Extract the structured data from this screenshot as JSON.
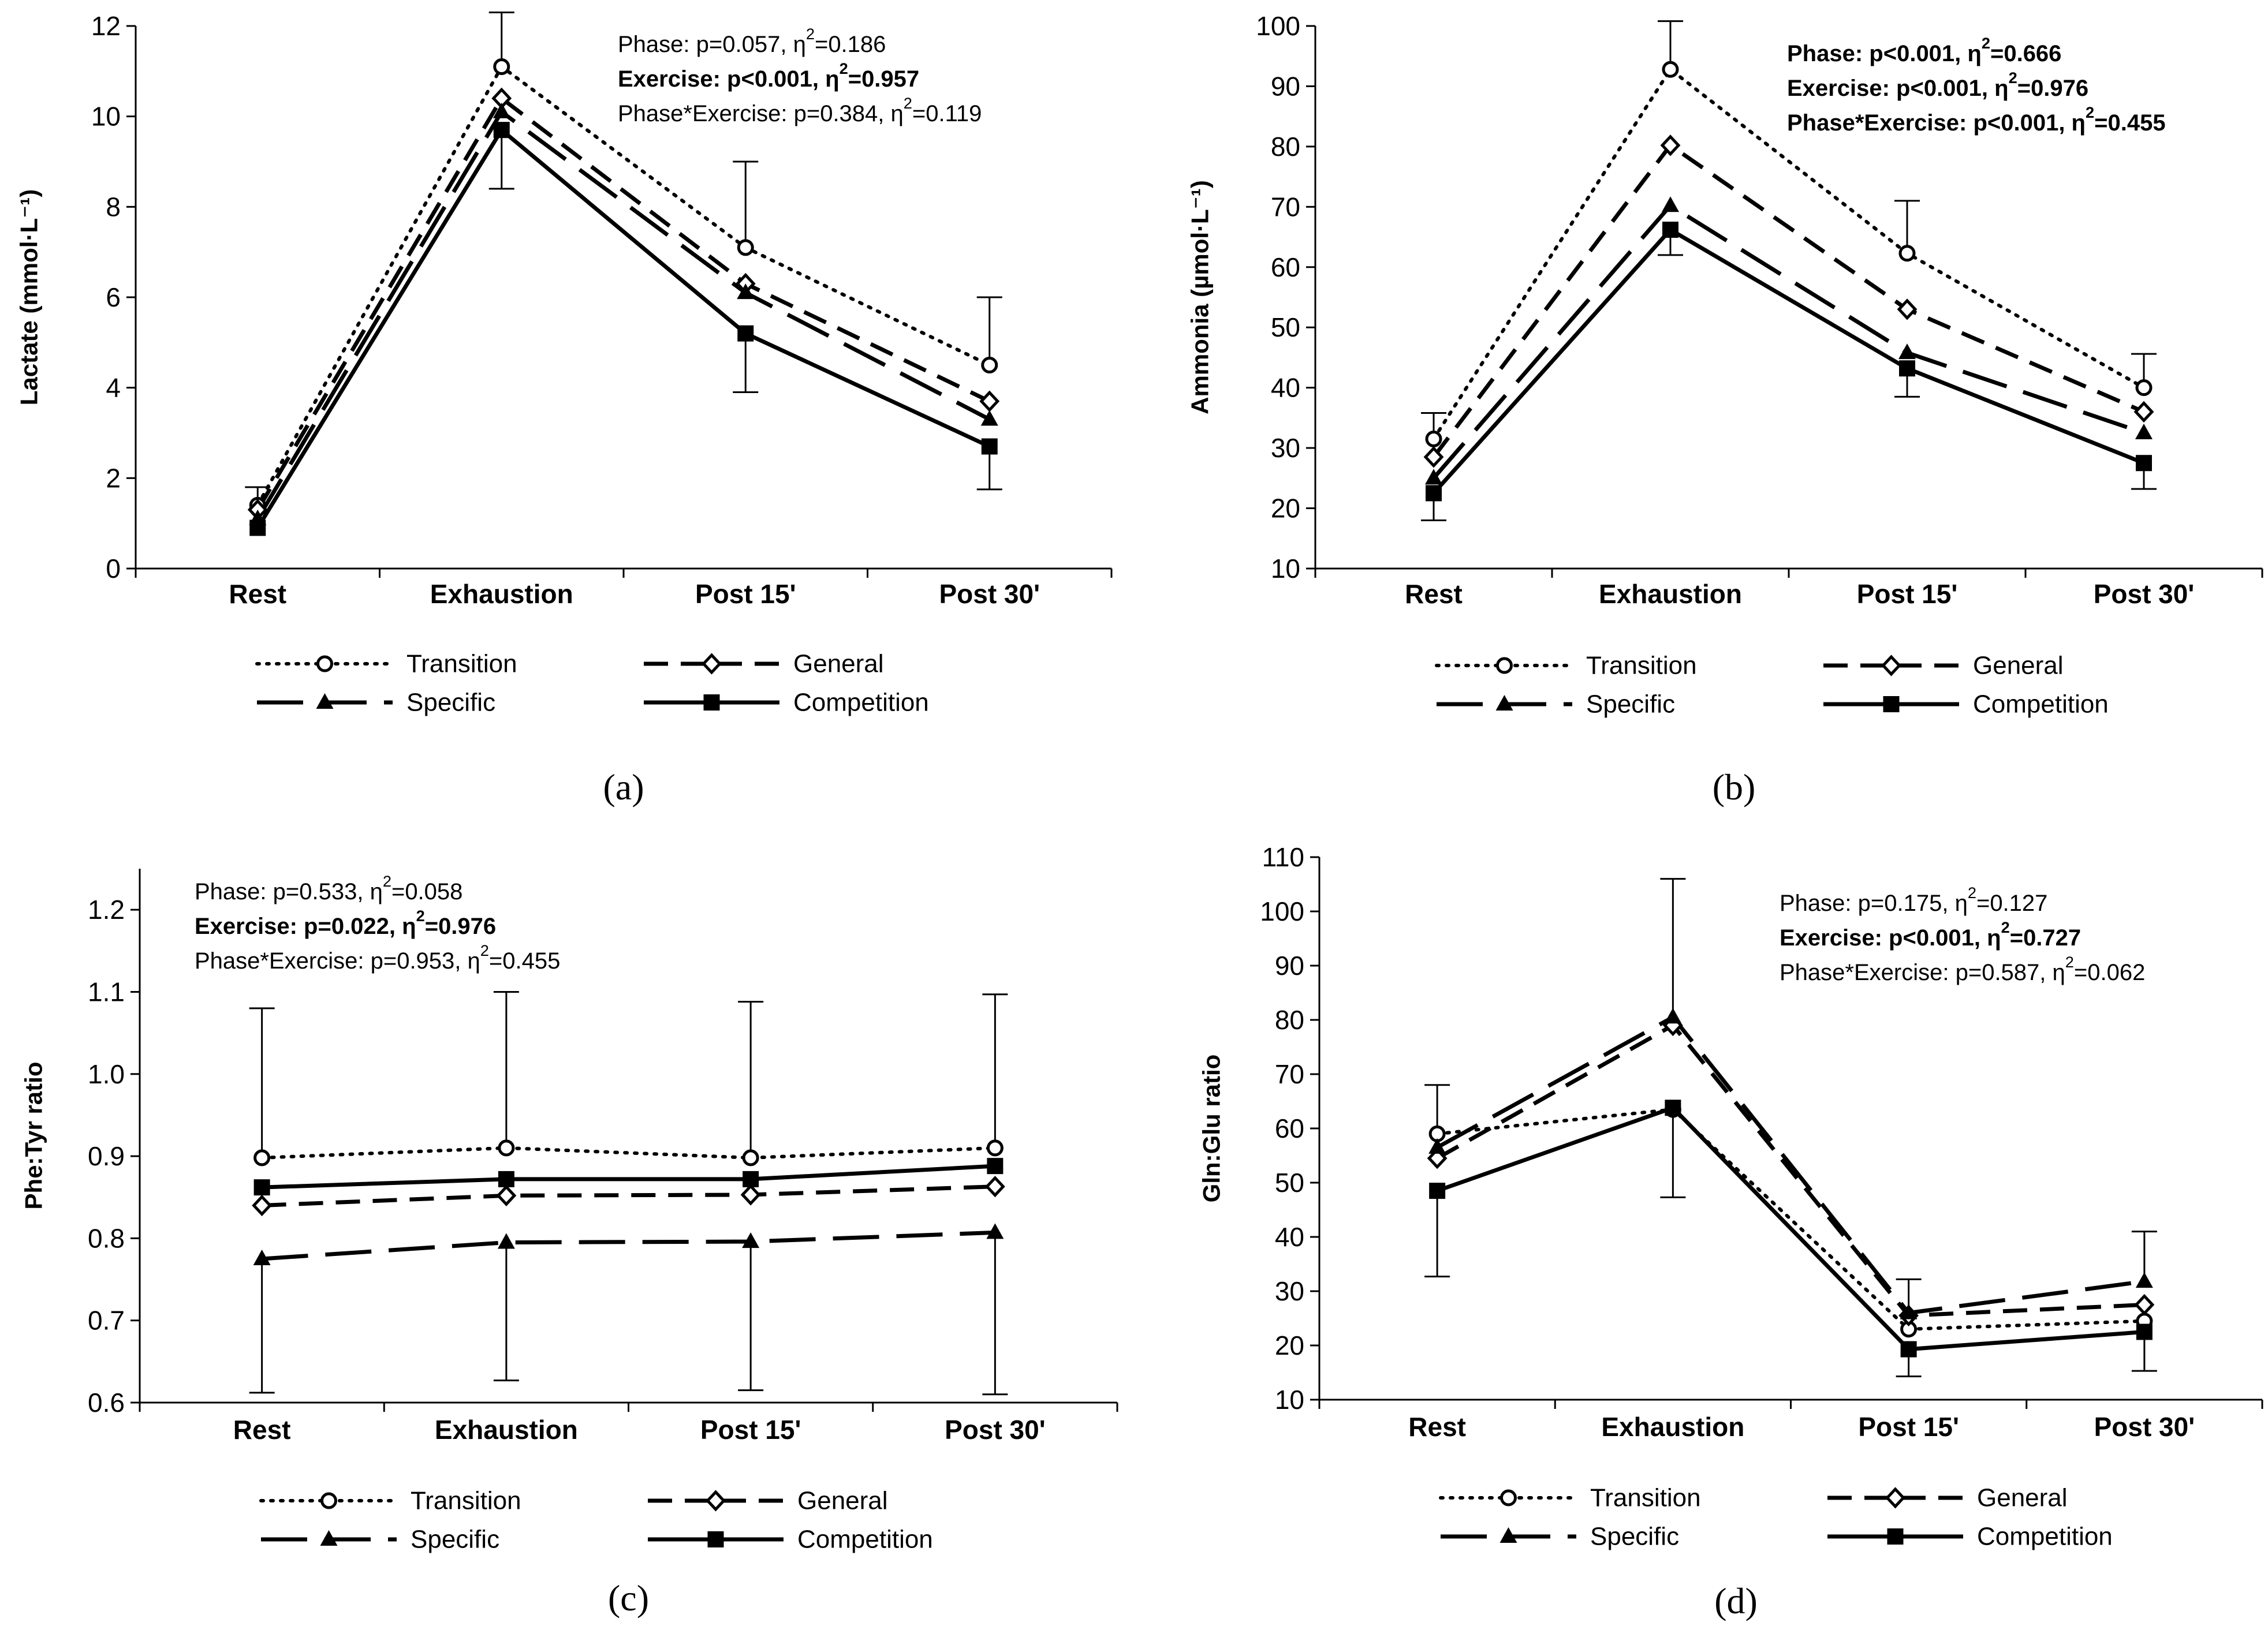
{
  "figure": {
    "series_styles": {
      "Transition": {
        "dash": "dotted",
        "marker": "open-circle"
      },
      "General": {
        "dash": "short-dash",
        "marker": "open-diamond"
      },
      "Specific": {
        "dash": "long-dash",
        "marker": "filled-triangle"
      },
      "Competition": {
        "dash": "solid",
        "marker": "filled-square"
      }
    },
    "line_color": "#000000",
    "background": "#ffffff"
  },
  "chart_data": [
    {
      "type": "line",
      "panel_label": "(a)",
      "ylabel": "Lactate (mmol·L⁻¹)",
      "xlabel": "",
      "categories": [
        "Rest",
        "Exhaustion",
        "Post 15'",
        "Post 30'"
      ],
      "ylim": [
        0,
        12
      ],
      "yticks": [
        0,
        2,
        4,
        6,
        8,
        10,
        12
      ],
      "ytick_labels": [
        "0",
        "2",
        "4",
        "6",
        "8",
        "10",
        "12"
      ],
      "series": [
        {
          "name": "Transition",
          "values": [
            1.4,
            11.1,
            7.1,
            4.5
          ],
          "err_up": [
            0.4,
            1.2,
            1.9,
            1.5
          ],
          "err_down": [
            0,
            0,
            0,
            0
          ]
        },
        {
          "name": "General",
          "values": [
            1.3,
            10.4,
            6.3,
            3.7
          ],
          "err_up": [
            0,
            0,
            0,
            0
          ],
          "err_down": [
            0,
            0,
            0,
            0
          ]
        },
        {
          "name": "Specific",
          "values": [
            1.1,
            10.1,
            6.1,
            3.3
          ],
          "err_up": [
            0,
            0,
            0,
            0
          ],
          "err_down": [
            0,
            0,
            0,
            0
          ]
        },
        {
          "name": "Competition",
          "values": [
            0.9,
            9.7,
            5.2,
            2.7
          ],
          "err_up": [
            0,
            0,
            0,
            0
          ],
          "err_down": [
            0,
            1.3,
            1.3,
            0.95
          ]
        }
      ],
      "stats": [
        {
          "text": "Phase: p=0.057, η",
          "sup": "2",
          "tail": "=0.186",
          "bold": false
        },
        {
          "text": "Exercise: p<0.001, η",
          "sup": "2",
          "tail": "=0.957",
          "bold": true
        },
        {
          "text": "Phase*Exercise: p=0.384, η",
          "sup": "2",
          "tail": "=0.119",
          "bold": false
        }
      ],
      "legend": [
        "Transition",
        "General",
        "Specific",
        "Competition"
      ]
    },
    {
      "type": "line",
      "panel_label": "(b)",
      "ylabel": "Ammonia (µmol·L⁻¹)",
      "xlabel": "",
      "categories": [
        "Rest",
        "Exhaustion",
        "Post 15'",
        "Post 30'"
      ],
      "ylim": [
        10,
        100
      ],
      "yticks": [
        10,
        20,
        30,
        40,
        50,
        60,
        70,
        80,
        90,
        100
      ],
      "ytick_labels": [
        "10",
        "20",
        "30",
        "40",
        "50",
        "60",
        "70",
        "80",
        "90",
        "100"
      ],
      "series": [
        {
          "name": "Transition",
          "values": [
            31.5,
            92.8,
            62.3,
            40.0
          ],
          "err_up": [
            4.3,
            8.0,
            8.7,
            5.6
          ],
          "err_down": [
            0,
            0,
            0,
            0
          ]
        },
        {
          "name": "General",
          "values": [
            28.5,
            80.2,
            53.0,
            36.0
          ],
          "err_up": [
            0,
            0,
            0,
            0
          ],
          "err_down": [
            0,
            0,
            0,
            0
          ]
        },
        {
          "name": "Specific",
          "values": [
            25.0,
            70.2,
            45.8,
            32.5
          ],
          "err_up": [
            0,
            0,
            0,
            0
          ],
          "err_down": [
            0,
            0,
            0,
            0
          ]
        },
        {
          "name": "Competition",
          "values": [
            22.5,
            66.2,
            43.2,
            27.5
          ],
          "err_up": [
            0,
            0,
            0,
            0
          ],
          "err_down": [
            4.5,
            4.2,
            4.7,
            4.3
          ]
        }
      ],
      "stats": [
        {
          "text": "Phase: p<0.001, η",
          "sup": "2",
          "tail": "=0.666",
          "bold": true
        },
        {
          "text": "Exercise: p<0.001, η",
          "sup": "2",
          "tail": "=0.976",
          "bold": true
        },
        {
          "text": "Phase*Exercise: p<0.001, η",
          "sup": "2",
          "tail": "=0.455",
          "bold": true
        }
      ],
      "legend": [
        "Transition",
        "General",
        "Specific",
        "Competition"
      ]
    },
    {
      "type": "line",
      "panel_label": "(c)",
      "ylabel": "Phe:Tyr ratio",
      "xlabel": "",
      "categories": [
        "Rest",
        "Exhaustion",
        "Post 15'",
        "Post 30'"
      ],
      "ylim": [
        0.6,
        1.25
      ],
      "yticks": [
        0.6,
        0.7,
        0.8,
        0.9,
        1.0,
        1.1,
        1.2
      ],
      "ytick_labels": [
        "0.6",
        "0.7",
        "0.8",
        "0.9",
        "1.0",
        "1.1",
        "1.2"
      ],
      "series": [
        {
          "name": "Transition",
          "values": [
            0.898,
            0.91,
            0.898,
            0.91
          ],
          "err_up": [
            0.182,
            0.19,
            0.19,
            0.187
          ],
          "err_down": [
            0,
            0,
            0,
            0
          ]
        },
        {
          "name": "General",
          "values": [
            0.84,
            0.852,
            0.853,
            0.863
          ],
          "err_up": [
            0,
            0,
            0,
            0
          ],
          "err_down": [
            0,
            0,
            0,
            0
          ]
        },
        {
          "name": "Specific",
          "values": [
            0.775,
            0.795,
            0.796,
            0.807
          ],
          "err_up": [
            0,
            0,
            0,
            0
          ],
          "err_down": [
            0.163,
            0.168,
            0.181,
            0.197
          ]
        },
        {
          "name": "Competition",
          "values": [
            0.862,
            0.872,
            0.872,
            0.888
          ],
          "err_up": [
            0,
            0,
            0,
            0
          ],
          "err_down": [
            0,
            0,
            0,
            0
          ]
        }
      ],
      "stats": [
        {
          "text": "Phase: p=0.533, η",
          "sup": "2",
          "tail": "=0.058",
          "bold": false
        },
        {
          "text": "Exercise: p=0.022, η",
          "sup": "2",
          "tail": "=0.976",
          "bold": true
        },
        {
          "text": "Phase*Exercise: p=0.953, η",
          "sup": "2",
          "tail": "=0.455",
          "bold": false
        }
      ],
      "legend": [
        "Transition",
        "General",
        "Specific",
        "Competition"
      ]
    },
    {
      "type": "line",
      "panel_label": "(d)",
      "ylabel": "Gln:Glu ratio",
      "xlabel": "",
      "categories": [
        "Rest",
        "Exhaustion",
        "Post 15'",
        "Post 30'"
      ],
      "ylim": [
        10,
        110
      ],
      "yticks": [
        10,
        20,
        30,
        40,
        50,
        60,
        70,
        80,
        90,
        100,
        110
      ],
      "ytick_labels": [
        "10",
        "20",
        "30",
        "40",
        "50",
        "60",
        "70",
        "80",
        "90",
        "100",
        "110"
      ],
      "series": [
        {
          "name": "Transition",
          "values": [
            59.0,
            63.5,
            23.0,
            24.5
          ],
          "err_up": [
            9.0,
            0,
            0,
            0
          ],
          "err_down": [
            0,
            0,
            0,
            0
          ]
        },
        {
          "name": "General",
          "values": [
            54.5,
            79.0,
            25.5,
            27.5
          ],
          "err_up": [
            0,
            0,
            0,
            0
          ],
          "err_down": [
            0,
            0,
            0,
            0
          ]
        },
        {
          "name": "Specific",
          "values": [
            56.5,
            80.5,
            26.0,
            31.8
          ],
          "err_up": [
            0,
            25.5,
            6.2,
            9.2
          ],
          "err_down": [
            0,
            0,
            0,
            0
          ]
        },
        {
          "name": "Competition",
          "values": [
            48.5,
            63.8,
            19.3,
            22.5
          ],
          "err_up": [
            0,
            0,
            0,
            0
          ],
          "err_down": [
            15.8,
            16.5,
            5.0,
            7.2
          ]
        }
      ],
      "stats": [
        {
          "text": "Phase: p=0.175, η",
          "sup": "2",
          "tail": "=0.127",
          "bold": false
        },
        {
          "text": "Exercise: p<0.001, η",
          "sup": "2",
          "tail": "=0.727",
          "bold": true
        },
        {
          "text": "Phase*Exercise: p=0.587, η",
          "sup": "2",
          "tail": "=0.062",
          "bold": false
        }
      ],
      "legend": [
        "Transition",
        "General",
        "Specific",
        "Competition"
      ]
    }
  ]
}
